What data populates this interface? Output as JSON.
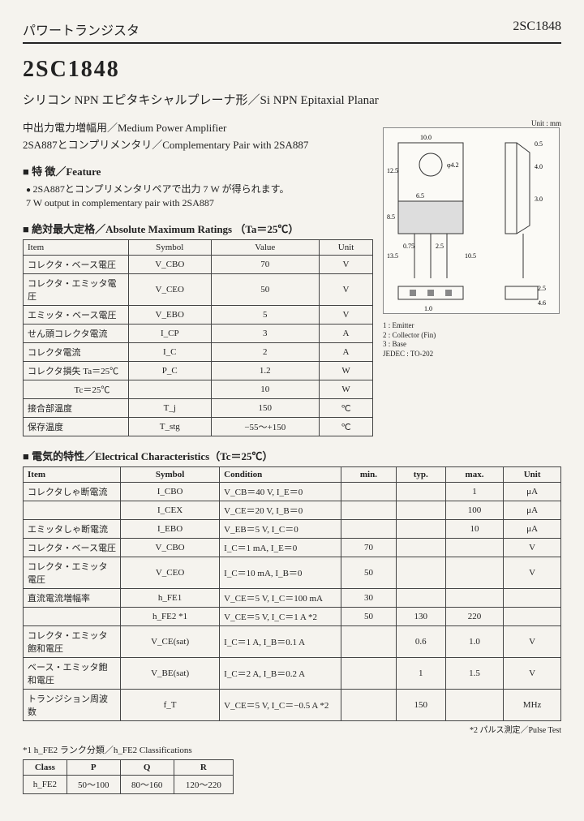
{
  "header": {
    "left": "パワートランジスタ",
    "right": "2SC1848"
  },
  "title": "2SC1848",
  "subtitle": "シリコン NPN エピタキシャルプレーナ形／Si NPN Epitaxial Planar",
  "app1": "中出力電力増幅用／Medium Power Amplifier",
  "app2": "2SA887とコンプリメンタリ／Complementary Pair with 2SA887",
  "sec_feature": "特 徴／Feature",
  "feature1": "2SA887とコンプリメンタリペアで出力 7 W が得られます。",
  "feature2": "7 W output in complementary pair with 2SA887",
  "sec_amr": "絶対最大定格／Absolute Maximum Ratings （Ta＝25℃）",
  "amr": {
    "head": [
      "Item",
      "Symbol",
      "Value",
      "Unit"
    ],
    "rows": [
      [
        "コレクタ・ベース電圧",
        "V_CBO",
        "70",
        "V"
      ],
      [
        "コレクタ・エミッタ電圧",
        "V_CEO",
        "50",
        "V"
      ],
      [
        "エミッタ・ベース電圧",
        "V_EBO",
        "5",
        "V"
      ],
      [
        "せん頭コレクタ電流",
        "I_CP",
        "3",
        "A"
      ],
      [
        "コレクタ電流",
        "I_C",
        "2",
        "A"
      ],
      [
        "コレクタ損失 Ta＝25℃",
        "P_C",
        "1.2",
        "W"
      ],
      [
        "　　　　　 Tc＝25℃",
        "",
        "10",
        "W"
      ],
      [
        "接合部温度",
        "T_j",
        "150",
        "℃"
      ],
      [
        "保存温度",
        "T_stg",
        "−55～+150",
        "℃"
      ]
    ]
  },
  "diagram": {
    "unit": "Unit : mm",
    "legend1": "1 : Emitter",
    "legend2": "2 : Collector (Fin)",
    "legend3": "3 : Base",
    "legend4": "JEDEC : TO-202",
    "dims": [
      "10.0",
      "12.5",
      "6.5",
      "4.2",
      "1.0",
      "8.5",
      "13.5",
      "0.75",
      "2.5",
      "10.5",
      "0.5",
      "4.0",
      "3.0",
      "2.5",
      "2.5",
      "4.6",
      "1.0"
    ]
  },
  "sec_elec": "電気的特性／Electrical Characteristics（Tc＝25℃）",
  "elec": {
    "head": [
      "Item",
      "Symbol",
      "Condition",
      "min.",
      "typ.",
      "max.",
      "Unit"
    ],
    "rows": [
      [
        "コレクタしゃ断電流",
        "I_CBO",
        "V_CB＝40 V, I_E＝0",
        "",
        "",
        "1",
        "μA"
      ],
      [
        "",
        "I_CEX",
        "V_CE＝20 V, I_B＝0",
        "",
        "",
        "100",
        "μA"
      ],
      [
        "エミッタしゃ断電流",
        "I_EBO",
        "V_EB＝5 V, I_C＝0",
        "",
        "",
        "10",
        "μA"
      ],
      [
        "コレクタ・ベース電圧",
        "V_CBO",
        "I_C＝1 mA, I_E＝0",
        "70",
        "",
        "",
        "V"
      ],
      [
        "コレクタ・エミッタ電圧",
        "V_CEO",
        "I_C＝10 mA, I_B＝0",
        "50",
        "",
        "",
        "V"
      ],
      [
        "直流電流増幅率",
        "h_FE1",
        "V_CE＝5 V, I_C＝100 mA",
        "30",
        "",
        "",
        ""
      ],
      [
        "",
        "h_FE2 *1",
        "V_CE＝5 V, I_C＝1 A *2",
        "50",
        "130",
        "220",
        ""
      ],
      [
        "コレクタ・エミッタ飽和電圧",
        "V_CE(sat)",
        "I_C＝1 A, I_B＝0.1 A",
        "",
        "0.6",
        "1.0",
        "V"
      ],
      [
        "ベース・エミッタ飽和電圧",
        "V_BE(sat)",
        "I_C＝2 A, I_B＝0.2 A",
        "",
        "1",
        "1.5",
        "V"
      ],
      [
        "トランジション周波数",
        "f_T",
        "V_CE＝5 V, I_C＝−0.5 A *2",
        "",
        "150",
        "",
        "MHz"
      ]
    ]
  },
  "note": "*2 パルス測定／Pulse Test",
  "class_head": "*1 h_FE2 ランク分類／h_FE2 Classifications",
  "class": {
    "head": [
      "Class",
      "P",
      "Q",
      "R"
    ],
    "row": [
      "h_FE2",
      "50～100",
      "80～160",
      "120～220"
    ]
  }
}
